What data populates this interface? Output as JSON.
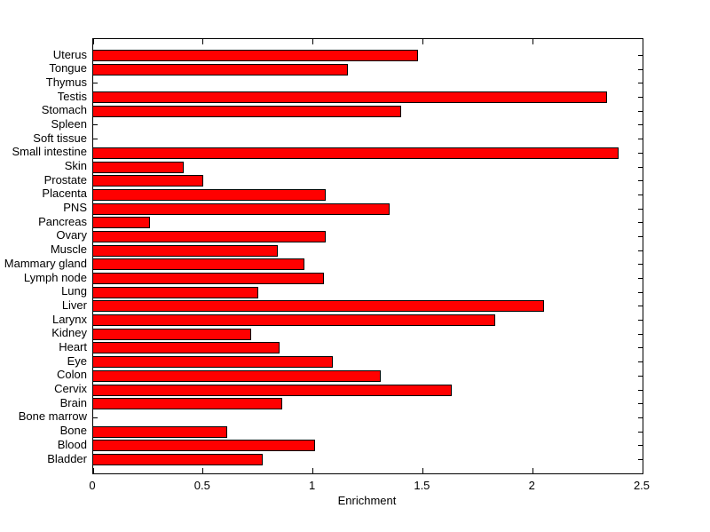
{
  "chart_data": {
    "type": "bar",
    "orientation": "horizontal",
    "title": "",
    "xlabel": "Enrichment",
    "ylabel": "",
    "xlim": [
      0,
      2.5
    ],
    "x_ticks": [
      0,
      0.5,
      1,
      1.5,
      2,
      2.5
    ],
    "x_tick_labels": [
      "0",
      "0.5",
      "1",
      "1.5",
      "2",
      "2.5"
    ],
    "grid": false,
    "legend": null,
    "bar_fill_color": "#ff0000",
    "bar_edge_color": "#000000",
    "axis_color": "#000000",
    "categories_top_to_bottom": [
      "Uterus",
      "Tongue",
      "Thymus",
      "Testis",
      "Stomach",
      "Spleen",
      "Soft tissue",
      "Small intestine",
      "Skin",
      "Prostate",
      "Placenta",
      "PNS",
      "Pancreas",
      "Ovary",
      "Muscle",
      "Mammary gland",
      "Lymph node",
      "Lung",
      "Liver",
      "Larynx",
      "Kidney",
      "Heart",
      "Eye",
      "Colon",
      "Cervix",
      "Brain",
      "Bone marrow",
      "Bone",
      "Blood",
      "Bladder"
    ],
    "values": [
      1.48,
      1.16,
      0,
      2.34,
      1.4,
      0,
      0,
      2.39,
      0.41,
      0.5,
      1.06,
      1.35,
      0.26,
      1.06,
      0.84,
      0.96,
      1.05,
      0.75,
      2.05,
      1.83,
      0.72,
      0.85,
      1.09,
      1.31,
      1.63,
      0.86,
      0,
      0.61,
      1.01,
      0.77
    ]
  }
}
